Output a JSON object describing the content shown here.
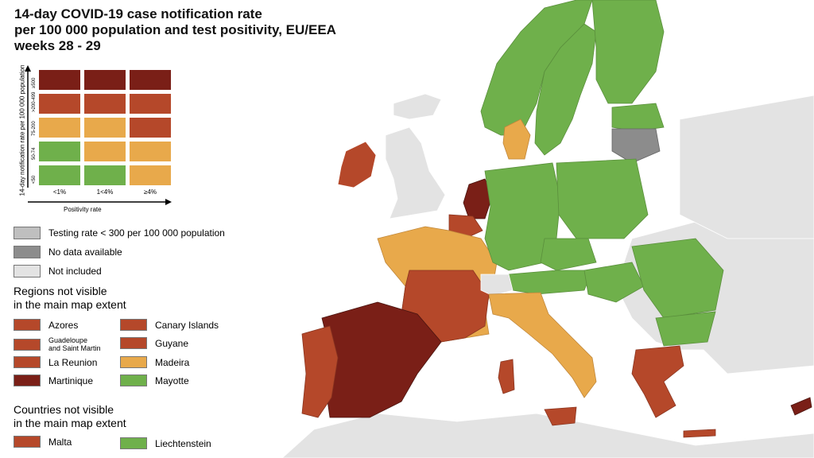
{
  "title": {
    "line1": "14-day COVID-19 case notification rate",
    "line2": "per 100 000 population and test positivity, EU/EEA",
    "line3": "weeks 28 - 29"
  },
  "colors": {
    "dark_red": "#7a1f17",
    "red": "#b5482a",
    "orange": "#e8a94b",
    "green": "#6fb04b",
    "testing_low": "#bfbfbf",
    "no_data": "#8c8c8c",
    "not_included": "#e3e3e3",
    "sea": "#ffffff"
  },
  "matrix": {
    "y_label": "14-day notification rate per 100 000 population",
    "x_label": "Positivity rate",
    "y_ticks": [
      "≥500",
      ">200-499",
      "75-200",
      "50-74",
      "<50"
    ],
    "x_ticks": [
      "<1%",
      "1<4%",
      "≥4%"
    ],
    "cells": [
      [
        "dark_red",
        "dark_red",
        "dark_red"
      ],
      [
        "red",
        "red",
        "red"
      ],
      [
        "orange",
        "orange",
        "red"
      ],
      [
        "green",
        "orange",
        "orange"
      ],
      [
        "green",
        "green",
        "orange"
      ]
    ]
  },
  "legend": {
    "testing_low": "Testing rate < 300 per 100 000 population",
    "no_data": "No data available",
    "not_included": "Not included"
  },
  "regions": {
    "heading_line1": "Regions not visible",
    "heading_line2": "in the main map extent",
    "items": [
      {
        "label": "Azores",
        "color": "red"
      },
      {
        "label": "Canary Islands",
        "color": "red"
      },
      {
        "label": "Guadeloupe and Saint Martin",
        "line1": "Guadeloupe",
        "line2": "and Saint Martin",
        "color": "red"
      },
      {
        "label": "Guyane",
        "color": "red"
      },
      {
        "label": "La Reunion",
        "color": "red"
      },
      {
        "label": "Madeira",
        "color": "orange"
      },
      {
        "label": "Martinique",
        "color": "dark_red"
      },
      {
        "label": "Mayotte",
        "color": "green"
      }
    ]
  },
  "countries": {
    "heading_line1": "Countries not visible",
    "heading_line2": "in the main map extent",
    "items": [
      {
        "label": "Malta",
        "color": "red"
      },
      {
        "label": "Liechtenstein",
        "color": "green"
      }
    ]
  },
  "map_regions": [
    {
      "name": "ireland",
      "color": "red"
    },
    {
      "name": "united-kingdom",
      "color": "not_included"
    },
    {
      "name": "iceland",
      "color": "not_included"
    },
    {
      "name": "norway",
      "color": "green"
    },
    {
      "name": "sweden",
      "color": "green"
    },
    {
      "name": "finland",
      "color": "green"
    },
    {
      "name": "denmark",
      "color": "orange"
    },
    {
      "name": "netherlands",
      "color": "dark_red"
    },
    {
      "name": "belgium",
      "color": "red"
    },
    {
      "name": "france",
      "color": "orange"
    },
    {
      "name": "spain",
      "color": "dark_red"
    },
    {
      "name": "portugal",
      "color": "red"
    },
    {
      "name": "germany",
      "color": "green"
    },
    {
      "name": "poland",
      "color": "green"
    },
    {
      "name": "czechia",
      "color": "green"
    },
    {
      "name": "austria",
      "color": "green"
    },
    {
      "name": "switzerland",
      "color": "not_included"
    },
    {
      "name": "italy",
      "color": "orange"
    },
    {
      "name": "sardinia",
      "color": "red"
    },
    {
      "name": "sicily",
      "color": "red"
    },
    {
      "name": "baltics",
      "color": "green"
    },
    {
      "name": "lithuania",
      "color": "no_data"
    },
    {
      "name": "hungary",
      "color": "green"
    },
    {
      "name": "romania",
      "color": "green"
    },
    {
      "name": "bulgaria",
      "color": "green"
    },
    {
      "name": "greece",
      "color": "red"
    },
    {
      "name": "cyprus",
      "color": "dark_red"
    },
    {
      "name": "balkans",
      "color": "not_included"
    }
  ]
}
